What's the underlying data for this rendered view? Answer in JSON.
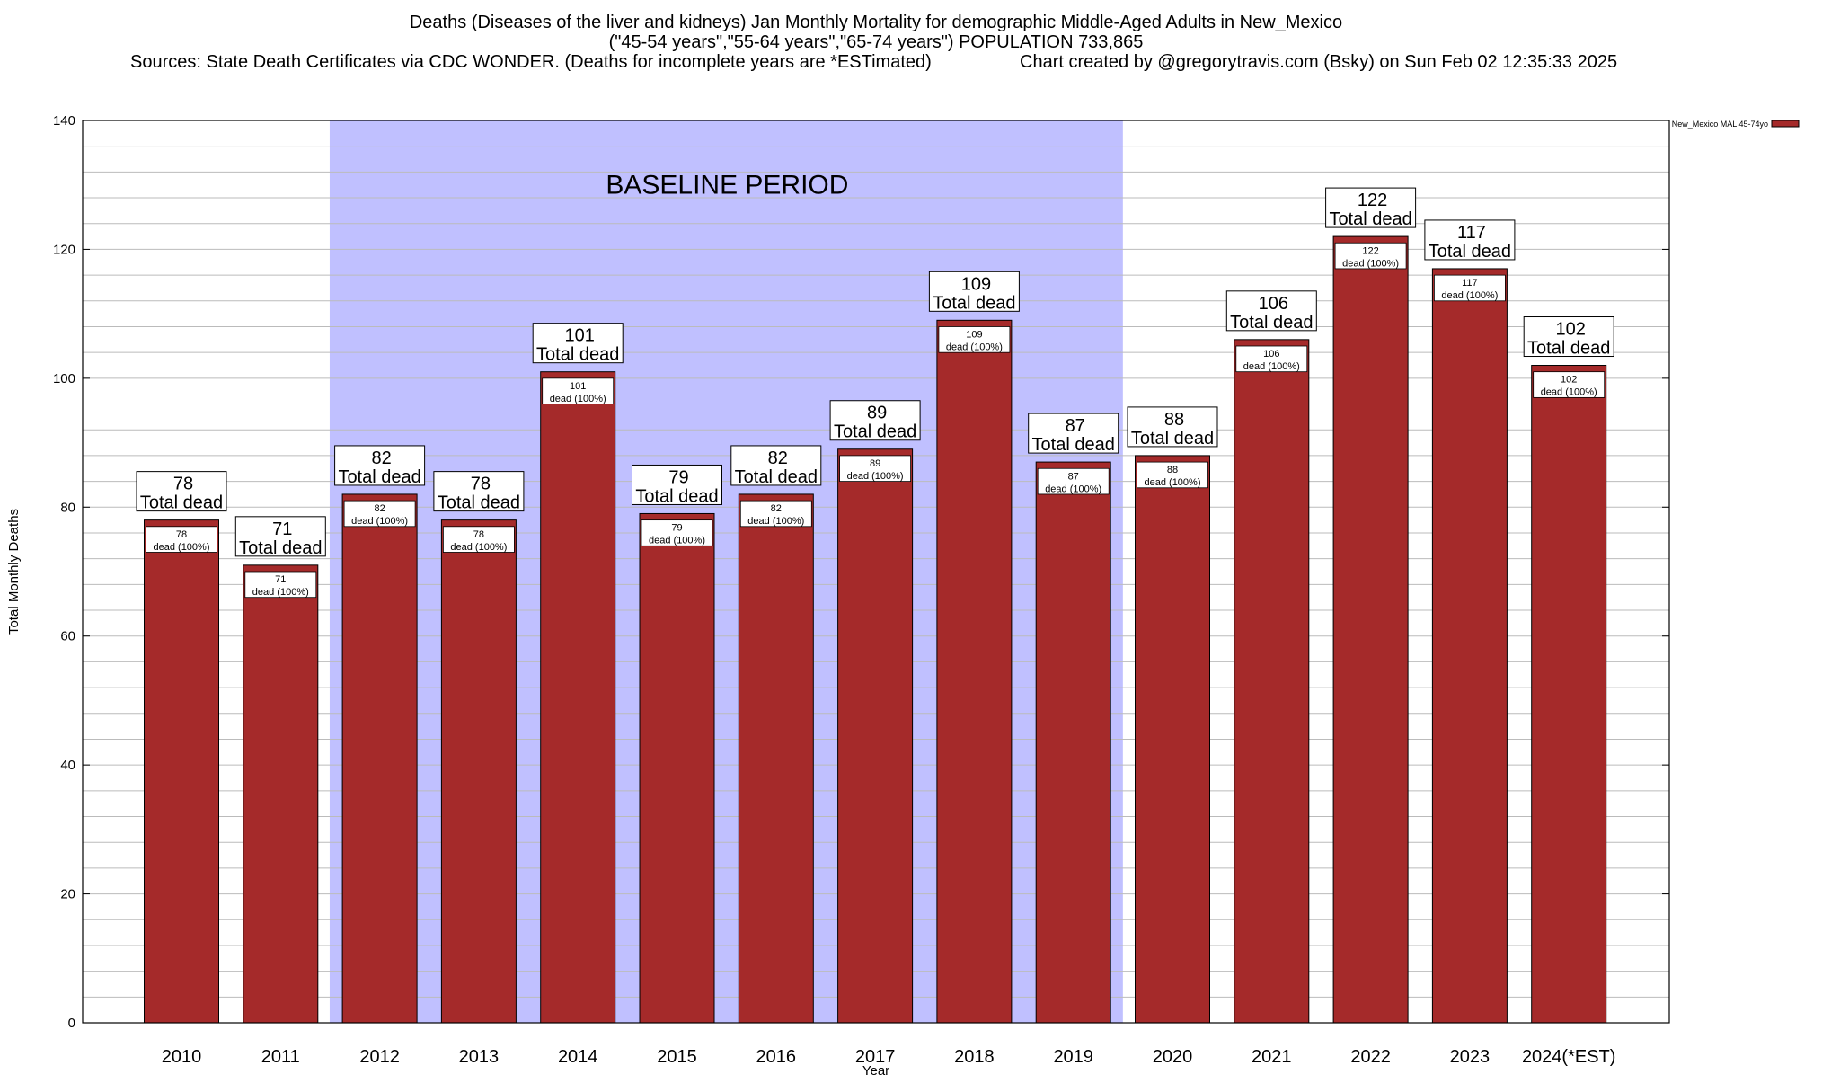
{
  "chart_data": {
    "type": "bar",
    "title_lines": [
      "Deaths (Diseases of the liver and kidneys) Jan Monthly Mortality for demographic Middle-Aged Adults in New_Mexico",
      "(\"45-54 years\",\"55-64 years\",\"65-74 years\") POPULATION 733,865"
    ],
    "sources": "Sources: State Death Certificates via CDC WONDER. (Deaths for incomplete years are *ESTimated)",
    "credit": "Chart created by @gregorytravis.com (Bsky) on Sun Feb 02 12:35:33 2025",
    "xlabel": "Year",
    "ylabel": "Total Monthly Deaths",
    "ylim": [
      0,
      140
    ],
    "yticks": [
      0,
      20,
      40,
      60,
      80,
      100,
      120,
      140
    ],
    "grid": true,
    "minor_grid_step": 4,
    "categories": [
      "2010",
      "2011",
      "2012",
      "2013",
      "2014",
      "2015",
      "2016",
      "2017",
      "2018",
      "2019",
      "2020",
      "2021",
      "2022",
      "2023",
      "2024(*EST)"
    ],
    "series": [
      {
        "name": "New_Mexico MAL 45-74yo",
        "color": "#a52a2a",
        "values": [
          78,
          71,
          82,
          78,
          101,
          79,
          82,
          89,
          109,
          87,
          88,
          106,
          122,
          117,
          102
        ]
      }
    ],
    "total_label": "Total dead",
    "inner_label": "dead (100%)",
    "baseline": {
      "label": "BASELINE PERIOD",
      "from": "2012",
      "to": "2019",
      "color": "#c0c0ff"
    },
    "legend": "top-right"
  }
}
